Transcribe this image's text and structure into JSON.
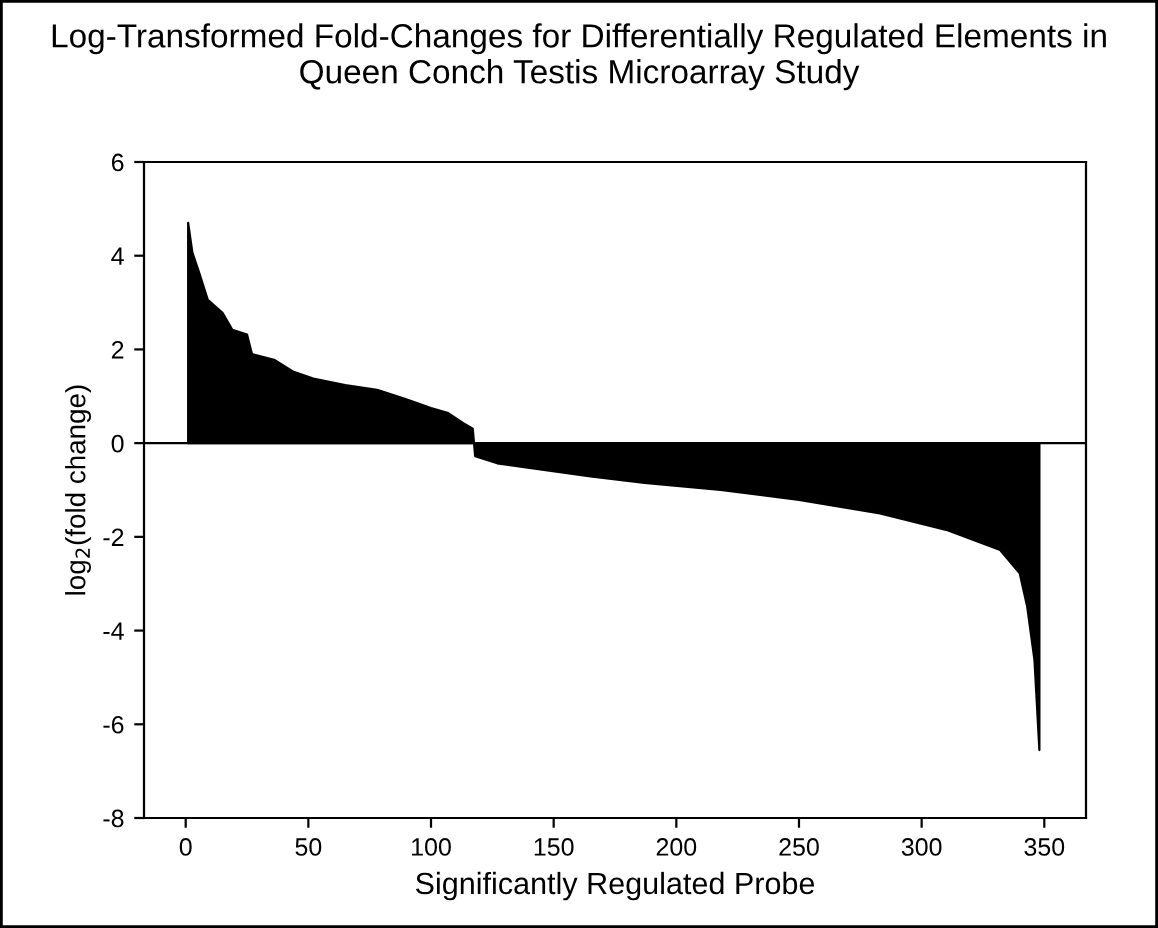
{
  "chart_data": {
    "type": "area",
    "title": "Log-Transformed Fold-Changes for Differentially Regulated Elements in Queen Conch Testis Microarray Study",
    "xlabel": "Significantly Regulated Probe",
    "ylabel": "log$_{2}$(fold change)",
    "x": [
      1,
      2.7,
      5.4,
      9,
      15,
      19,
      25,
      27,
      36,
      44,
      52,
      65,
      78,
      89,
      100,
      107,
      113,
      117,
      118,
      127,
      146,
      165,
      187,
      218,
      250,
      283,
      310,
      332,
      340,
      343,
      346,
      348
    ],
    "series": [
      {
        "color": "#000000",
        "values": [
          4.7,
          4.07,
          3.65,
          3.06,
          2.78,
          2.42,
          2.32,
          1.9,
          1.78,
          1.52,
          1.38,
          1.24,
          1.14,
          0.95,
          0.75,
          0.64,
          0.43,
          0.31,
          -0.28,
          -0.43,
          -0.57,
          -0.71,
          -0.85,
          -1.0,
          -1.21,
          -1.5,
          -1.85,
          -2.28,
          -2.78,
          -3.48,
          -4.63,
          -6.55
        ]
      }
    ],
    "xlim": [
      -17,
      367
    ],
    "ylim": [
      -8,
      6
    ],
    "xticks": [
      0,
      50,
      100,
      150,
      200,
      250,
      300,
      350
    ],
    "yticks": [
      -8,
      -6,
      -4,
      -2,
      0,
      2,
      4,
      6
    ],
    "ref_lines": [
      {
        "axis": "y",
        "value": 0,
        "label": null,
        "color": "#000000"
      }
    ],
    "grid": false,
    "legend": false
  }
}
